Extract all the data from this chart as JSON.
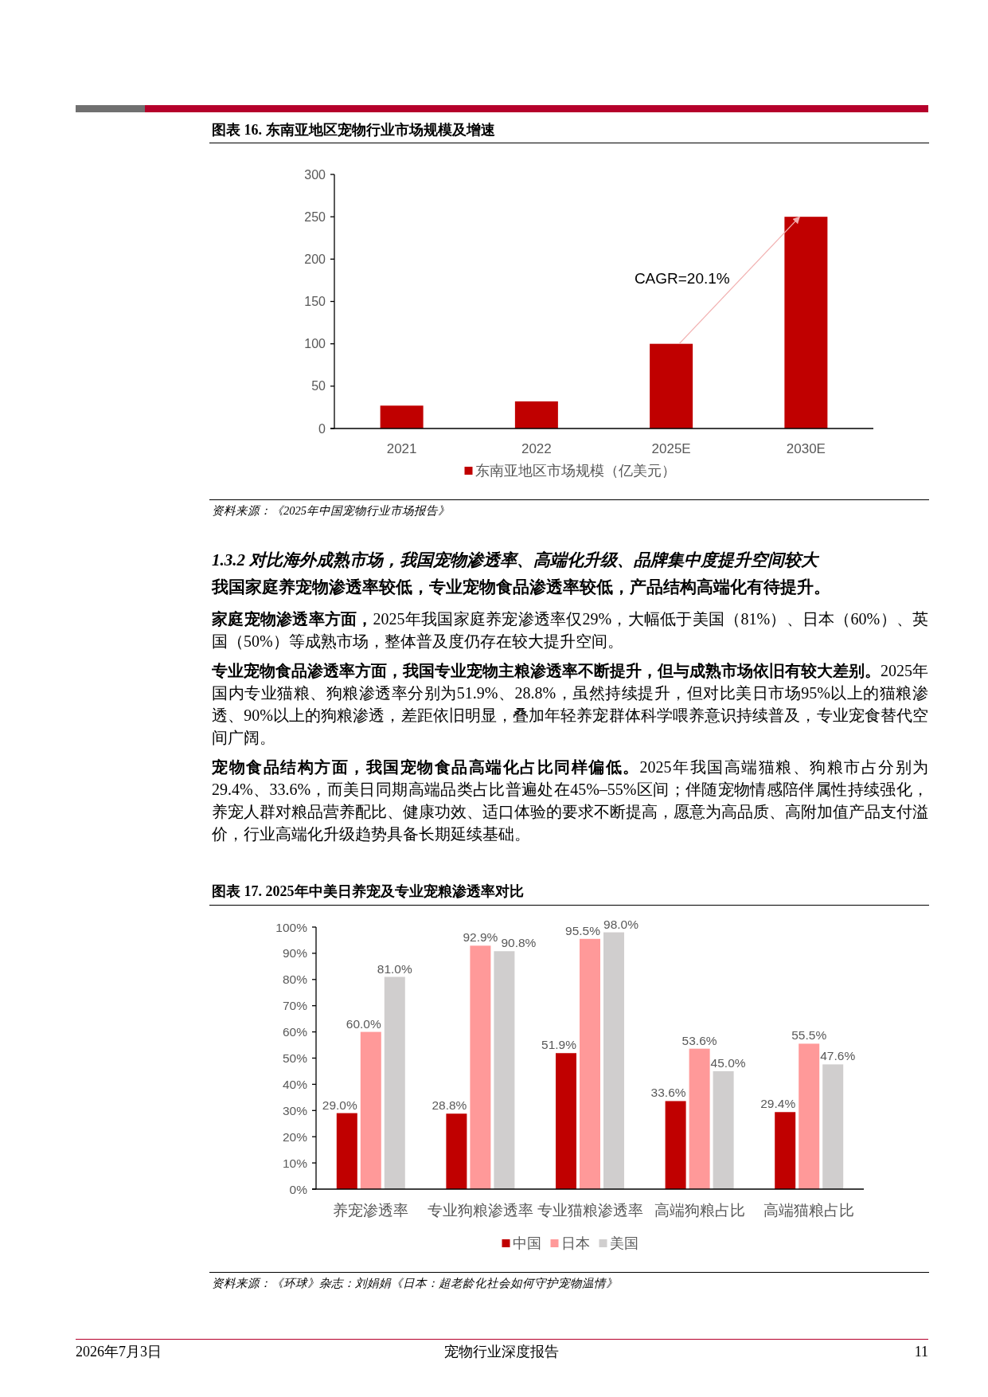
{
  "chart_data": [
    {
      "type": "bar",
      "title": "图表 16. 东南亚地区宠物行业市场规模及增速",
      "categories": [
        "2021",
        "2022",
        "2025E",
        "2030E"
      ],
      "series": [
        {
          "name": "东南亚地区市场规模（亿美元）",
          "color": "#c00000",
          "values": [
            27,
            32,
            100,
            250
          ]
        }
      ],
      "ylim": [
        0,
        300
      ],
      "yticks": [
        0,
        50,
        100,
        150,
        200,
        250,
        300
      ],
      "legend": "bottom",
      "annotations": [
        "CAGR=20.1%",
        "资料来源：《2025年中国宠物行业市场报告》"
      ]
    },
    {
      "type": "other",
      "title": "1.3.2 对比海外成熟市场，我国宠物渗透率、高端化升级、品牌集中度提升空间较大",
      "subtitle": "我国家庭养宠物渗透率较低，专业宠物食品渗透率较低，产品结构高端化有待提升。",
      "annotations": [
        "**家庭宠物渗透率方面，**2025年我国家庭养宠渗透率仅29%，大幅低于美国（81%）、日本（60%）、英国（50%）等成熟市场，整体普及度仍存在较大提升空间。",
        "**专业宠物食品渗透率方面，我国专业宠物主粮渗透率不断提升，但与成熟市场依旧有较大差别。**2025年国内专业猫粮、狗粮渗透率分别为51.9%、28.8%，虽然持续提升，但对比美日市场95%以上的猫粮渗透、90%以上的狗粮渗透，差距依旧明显，叠加年轻养宠群体科学喂养意识持续普及，专业宠食替代空间广阔。",
        "**宠物食品结构方面，我国宠物食品高端化占比同样偏低。**2025年我国高端猫粮、狗粮市占分别为29.4%、33.6%，而美日同期高端品类占比普遍处在45%–55%区间；伴随宠物情感陪伴属性持续强化，养宠人群对粮品营养配比、健康功效、适口体验的要求不断提高，愿意为高品质、高附加值产品支付溢价，行业高端化升级趋势具备长期延续基础。"
      ]
    },
    {
      "type": "bar",
      "title": "图表 17. 2025年中美日养宠及专业宠粮渗透率对比",
      "categories": [
        "养宠渗透率",
        "专业狗粮渗透率",
        "专业猫粮渗透率",
        "高端狗粮占比",
        "高端猫粮占比"
      ],
      "series": [
        {
          "name": "中国",
          "color": "#c00000",
          "values": [
            29.0,
            28.8,
            51.9,
            33.6,
            29.4
          ],
          "value_labels": [
            "29.0%",
            "28.8%",
            "51.9%",
            "33.6%",
            "29.4%"
          ]
        },
        {
          "name": "日本",
          "color": "#ff9999",
          "values": [
            60.0,
            92.9,
            95.5,
            53.6,
            55.5
          ],
          "value_labels": [
            "60.0%",
            "92.9%",
            "95.5%",
            "53.6%",
            "55.5%"
          ]
        },
        {
          "name": "美国",
          "color": "#d0cece",
          "values": [
            81.0,
            90.8,
            98.0,
            45.0,
            47.6
          ],
          "value_labels": [
            "81.0%",
            "90.8%",
            "98.0%",
            "45.0%",
            "47.6%"
          ]
        }
      ],
      "ylim": [
        0,
        100
      ],
      "yticks": [
        {
          "value": 0,
          "label": "0%"
        },
        {
          "value": 10,
          "label": "10%"
        },
        {
          "value": 20,
          "label": "20%"
        },
        {
          "value": 30,
          "label": "30%"
        },
        {
          "value": 40,
          "label": "40%"
        },
        {
          "value": 50,
          "label": "50%"
        },
        {
          "value": 60,
          "label": "60%"
        },
        {
          "value": 70,
          "label": "70%"
        },
        {
          "value": 80,
          "label": "80%"
        },
        {
          "value": 90,
          "label": "90%"
        },
        {
          "value": 100,
          "label": "100%"
        }
      ],
      "legend": "bottom",
      "annotations": [
        "资料来源：《环球》杂志：刘娟娟《日本：超老龄化社会如何守护宠物温情》",
        "2026年7月3日",
        "宠物行业深度报告",
        "11"
      ]
    }
  ]
}
